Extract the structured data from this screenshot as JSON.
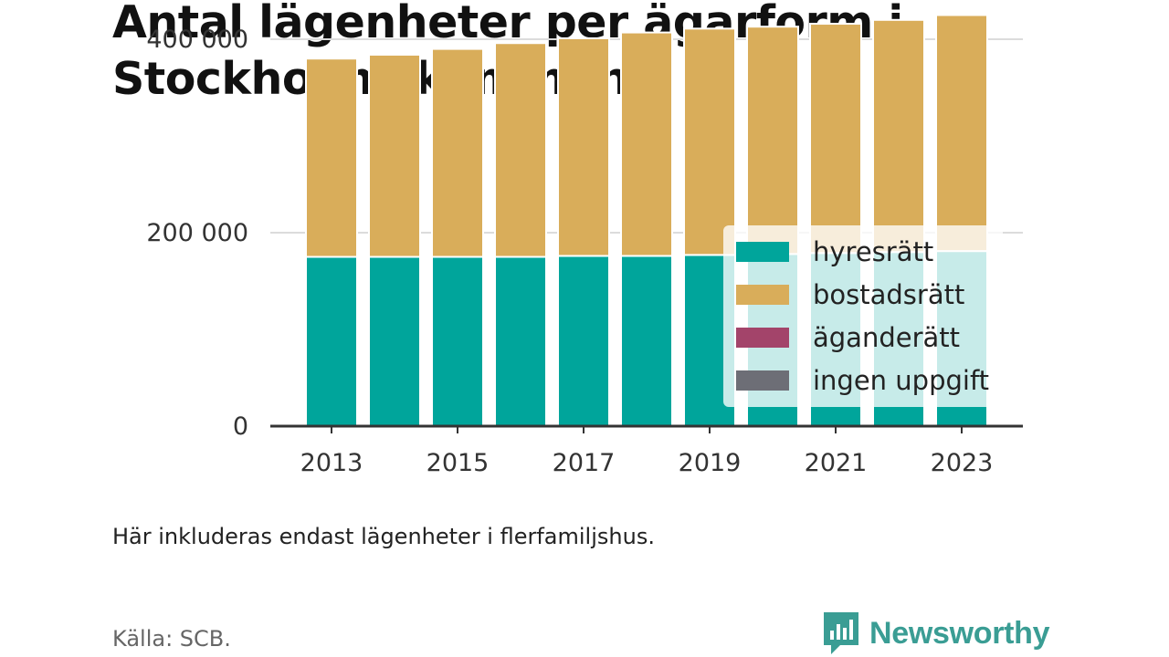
{
  "title": "Antal lägenheter per ägarform i Stockholms kommun",
  "note": "Här inkluderas endast lägenheter i flerfamiljshus.",
  "source": "Källa: SCB.",
  "brand": {
    "name": "Newsworthy",
    "icon": "newsworthy-logo-icon",
    "color": "#3a9d94"
  },
  "chart_data": {
    "type": "bar",
    "stacked": true,
    "x": [
      2013,
      2014,
      2015,
      2016,
      2017,
      2018,
      2019,
      2020,
      2021,
      2022,
      2023
    ],
    "x_tick_labels": [
      "2013",
      "2015",
      "2017",
      "2019",
      "2021",
      "2023"
    ],
    "ylim": [
      0,
      430000
    ],
    "y_ticks": [
      0,
      200000,
      400000
    ],
    "y_tick_labels": [
      "0",
      "200 000",
      "400 000"
    ],
    "grid": true,
    "legend_position": "right",
    "series": [
      {
        "name": "hyresrätt",
        "color": "#00a59b",
        "values": [
          175000,
          175000,
          175000,
          175000,
          176000,
          176000,
          177000,
          178000,
          179000,
          180000,
          181000
        ]
      },
      {
        "name": "bostadsrätt",
        "color": "#d9ad5a",
        "values": [
          205000,
          209000,
          215000,
          221000,
          225000,
          231000,
          234000,
          235000,
          237000,
          240000,
          244000
        ]
      },
      {
        "name": "äganderätt",
        "color": "#a3446a",
        "values": [
          0,
          0,
          0,
          0,
          0,
          0,
          0,
          0,
          0,
          0,
          0
        ]
      },
      {
        "name": "ingen uppgift",
        "color": "#6d6e76",
        "values": [
          0,
          0,
          0,
          0,
          0,
          0,
          0,
          0,
          0,
          0,
          0
        ]
      }
    ]
  }
}
